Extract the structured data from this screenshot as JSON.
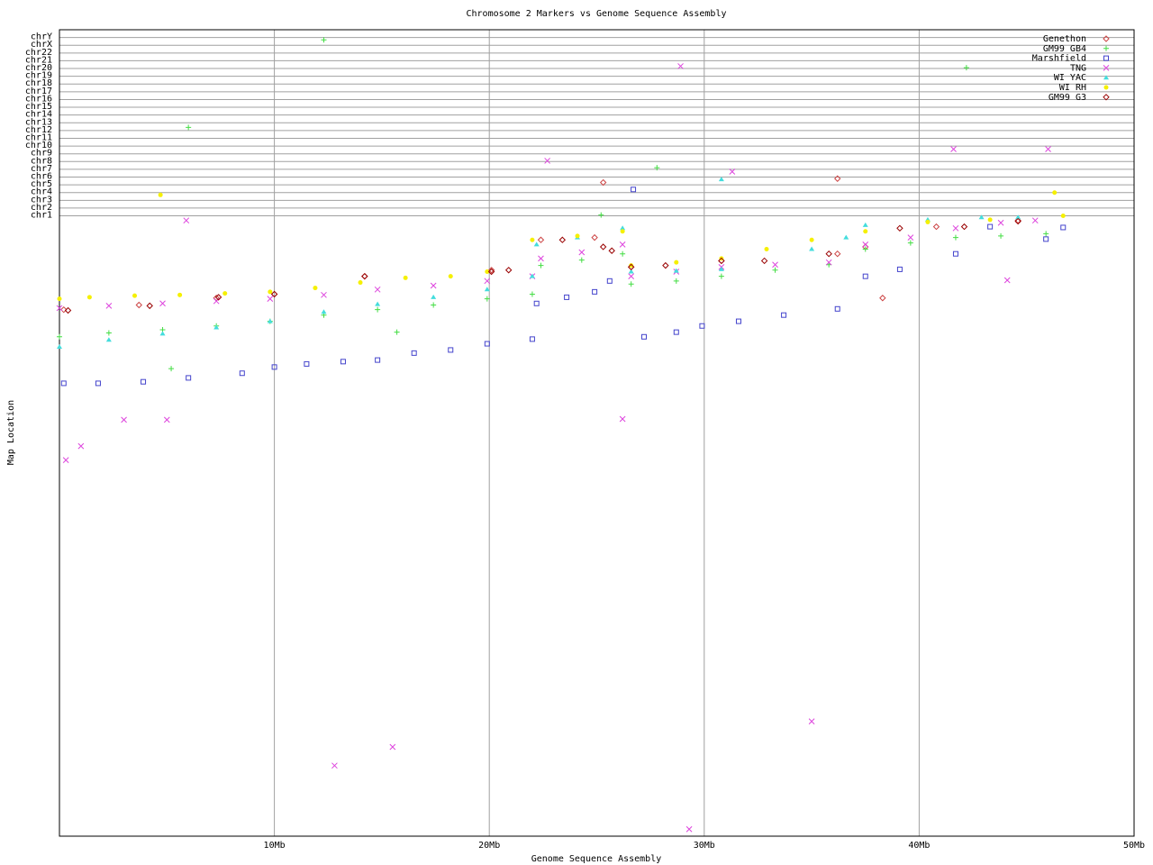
{
  "chart_data": {
    "type": "scatter",
    "title": "Chromosome 2 Markers vs Genome Sequence Assembly",
    "x_label": "Genome Sequence Assembly",
    "y_label": "Map Location",
    "xlim": [
      0,
      50
    ],
    "xticks": [
      {
        "value": 10,
        "label": "10Mb"
      },
      {
        "value": 20,
        "label": "20Mb"
      },
      {
        "value": 30,
        "label": "30Mb"
      },
      {
        "value": 40,
        "label": "40Mb"
      },
      {
        "value": 50,
        "label": "50Mb"
      }
    ],
    "ylim": [
      79,
      -25
    ],
    "yticks": [
      {
        "value": -1,
        "label": "chr1"
      },
      {
        "value": -2,
        "label": "chr2"
      },
      {
        "value": -3,
        "label": "chr3"
      },
      {
        "value": -4,
        "label": "chr4"
      },
      {
        "value": -5,
        "label": "chr5"
      },
      {
        "value": -6,
        "label": "chr6"
      },
      {
        "value": -7,
        "label": "chr7"
      },
      {
        "value": -8,
        "label": "chr8"
      },
      {
        "value": -9,
        "label": "chr9"
      },
      {
        "value": -10,
        "label": "chr10"
      },
      {
        "value": -11,
        "label": "chr11"
      },
      {
        "value": -12,
        "label": "chr12"
      },
      {
        "value": -13,
        "label": "chr13"
      },
      {
        "value": -14,
        "label": "chr14"
      },
      {
        "value": -15,
        "label": "chr15"
      },
      {
        "value": -16,
        "label": "chr16"
      },
      {
        "value": -17,
        "label": "chr17"
      },
      {
        "value": -18,
        "label": "chr18"
      },
      {
        "value": -19,
        "label": "chr19"
      },
      {
        "value": -20,
        "label": "chr20"
      },
      {
        "value": -21,
        "label": "chr21"
      },
      {
        "value": -22,
        "label": "chr22"
      },
      {
        "value": -23,
        "label": "chrX"
      },
      {
        "value": -24,
        "label": "chrY"
      }
    ],
    "grid": true,
    "legend": "top-right",
    "series": [
      {
        "name": "Genethon",
        "color": "#cc4444",
        "marker": "diamond",
        "x": [
          0.2,
          3.7,
          7.3,
          10.0,
          14.2,
          20.1,
          22.4,
          24.9,
          26.6,
          30.8,
          36.2,
          37.5,
          40.8,
          44.6,
          25.3,
          36.2,
          38.3
        ],
        "y": [
          11.1,
          10.5,
          9.6,
          9.1,
          6.8,
          6.0,
          2.1,
          1.8,
          5.6,
          4.8,
          3.9,
          3.0,
          0.4,
          -0.4,
          -5.3,
          -5.8,
          9.6
        ]
      },
      {
        "name": "GM99 GB4",
        "color": "#44dd44",
        "marker": "plus",
        "x": [
          0,
          2.3,
          4.8,
          7.3,
          9.8,
          12.3,
          14.8,
          17.4,
          19.9,
          22.0,
          22.4,
          24.3,
          26.2,
          26.6,
          28.7,
          30.8,
          33.3,
          35.8,
          37.5,
          39.6,
          41.7,
          43.8,
          45.9,
          12.3,
          6.0,
          27.8,
          42.2,
          25.2,
          5.2,
          15.7
        ],
        "y": [
          14.6,
          14.1,
          13.7,
          13.2,
          12.6,
          11.8,
          11.1,
          10.5,
          9.7,
          9.1,
          5.4,
          4.7,
          3.9,
          7.8,
          7.4,
          6.8,
          6.0,
          5.3,
          3.3,
          2.5,
          1.8,
          1.6,
          1.3,
          -23.7,
          -12.4,
          -7.2,
          -20.1,
          -1.1,
          18.7,
          14.0
        ]
      },
      {
        "name": "Marshfield",
        "color": "#4444cc",
        "marker": "square",
        "x": [
          0.2,
          1.8,
          3.9,
          6.0,
          8.5,
          10.0,
          11.5,
          13.2,
          14.8,
          16.5,
          18.2,
          19.9,
          22.0,
          22.2,
          23.6,
          24.9,
          25.6,
          27.2,
          28.7,
          29.9,
          31.6,
          33.7,
          36.2,
          37.5,
          39.1,
          41.7,
          43.3,
          45.9,
          26.7,
          46.7
        ],
        "y": [
          20.6,
          20.6,
          20.4,
          19.9,
          19.3,
          18.5,
          18.1,
          17.8,
          17.6,
          16.7,
          16.3,
          15.5,
          14.9,
          10.3,
          9.5,
          8.8,
          7.4,
          14.6,
          14.0,
          13.2,
          12.6,
          11.8,
          11.0,
          6.8,
          5.9,
          3.9,
          0.4,
          2.0,
          -4.4,
          0.5
        ]
      },
      {
        "name": "TNG",
        "color": "#dd44dd",
        "marker": "cross",
        "x": [
          0,
          2.3,
          4.8,
          7.3,
          9.8,
          12.3,
          14.8,
          17.4,
          19.9,
          22.0,
          22.4,
          24.3,
          26.2,
          26.6,
          28.7,
          30.8,
          33.3,
          35.8,
          37.5,
          39.6,
          41.7,
          43.8,
          45.4,
          0.3,
          1.0,
          3.0,
          5.0,
          5.9,
          22.7,
          28.9,
          31.3,
          41.6,
          46.0,
          12.8,
          15.5,
          26.2,
          35.0,
          29.3,
          44.1
        ],
        "y": [
          10.9,
          10.6,
          10.3,
          10.0,
          9.7,
          9.2,
          8.5,
          8.0,
          7.4,
          6.8,
          4.5,
          3.7,
          2.7,
          6.8,
          6.2,
          5.6,
          5.3,
          5.0,
          2.7,
          1.8,
          0.6,
          -0.1,
          -0.4,
          30.5,
          28.7,
          25.3,
          25.3,
          -0.4,
          -8.1,
          -20.3,
          -6.7,
          -9.6,
          -9.6,
          69.9,
          67.5,
          25.2,
          64.2,
          78.1,
          7.3
        ]
      },
      {
        "name": "WI YAC",
        "color": "#44dddd",
        "marker": "triangle",
        "x": [
          0,
          2.3,
          4.8,
          7.3,
          9.8,
          12.3,
          14.8,
          17.4,
          19.9,
          22.0,
          22.2,
          24.1,
          26.2,
          26.6,
          28.7,
          30.8,
          35.0,
          36.6,
          37.5,
          40.4,
          42.9,
          44.6,
          30.8
        ],
        "y": [
          15.9,
          15.0,
          14.2,
          13.4,
          12.6,
          11.4,
          10.4,
          9.5,
          8.5,
          6.8,
          2.7,
          1.8,
          0.6,
          6.2,
          6.1,
          5.9,
          3.3,
          1.8,
          0.2,
          -0.5,
          -0.8,
          -0.8,
          -5.7
        ]
      },
      {
        "name": "WI RH",
        "color": "#f5f000",
        "marker": "circle",
        "x": [
          0,
          1.4,
          3.5,
          5.6,
          7.7,
          9.8,
          11.9,
          14.0,
          16.1,
          18.2,
          19.9,
          22.0,
          24.1,
          26.2,
          26.6,
          28.7,
          30.8,
          32.9,
          35.0,
          37.5,
          40.4,
          43.3,
          46.7,
          4.7,
          46.3
        ],
        "y": [
          9.7,
          9.5,
          9.3,
          9.2,
          9.0,
          8.8,
          8.3,
          7.6,
          7.0,
          6.8,
          6.2,
          2.1,
          1.6,
          1.0,
          5.4,
          5.0,
          4.5,
          3.3,
          2.1,
          1.0,
          -0.2,
          -0.5,
          -1.0,
          -3.7,
          -4.0
        ]
      },
      {
        "name": "GM99 G3",
        "color": "#990000",
        "marker": "diamond",
        "x": [
          0.4,
          4.2,
          7.4,
          10.0,
          14.2,
          20.1,
          20.9,
          23.4,
          25.3,
          25.7,
          26.6,
          28.2,
          30.8,
          32.8,
          35.8,
          39.1,
          42.1,
          44.6
        ],
        "y": [
          11.2,
          10.6,
          9.5,
          9.1,
          6.8,
          6.2,
          6.0,
          2.1,
          3.0,
          3.5,
          5.6,
          5.4,
          4.8,
          4.8,
          3.9,
          0.6,
          0.4,
          -0.3
        ]
      }
    ]
  }
}
